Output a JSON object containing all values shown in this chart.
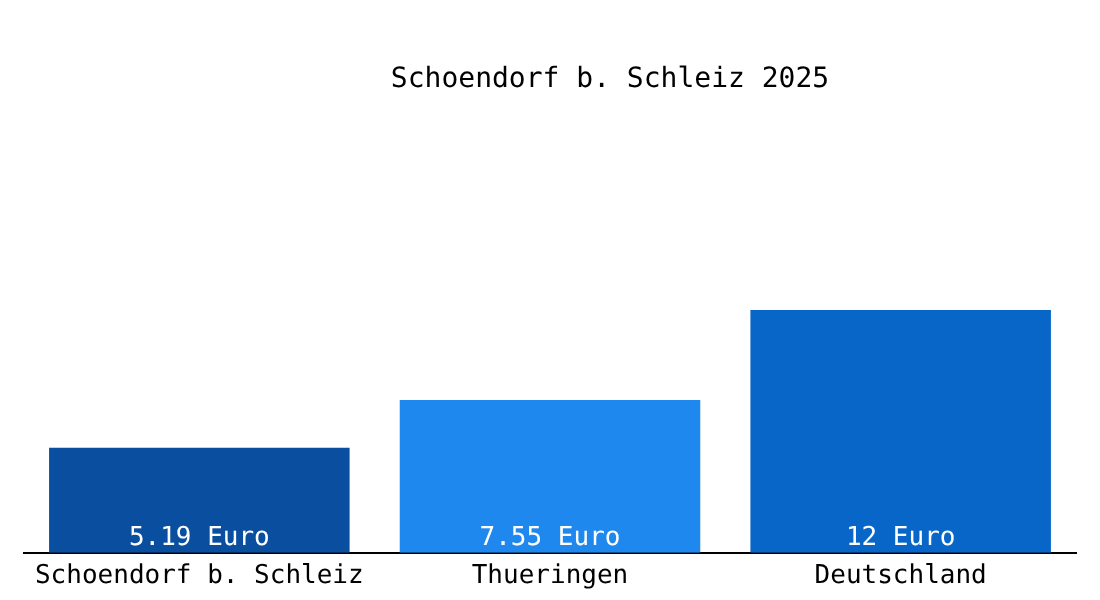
{
  "chart_data": {
    "type": "bar",
    "title": "Schoendorf b. Schleiz 2025",
    "categories": [
      "Schoendorf b. Schleiz",
      "Thueringen",
      "Deutschland"
    ],
    "values": [
      5.19,
      7.55,
      12
    ],
    "colors": [
      "#0a4f9f",
      "#1e88ee",
      "#0866c8"
    ],
    "value_labels": [
      "5.19 Euro",
      "7.55 Euro",
      "12 Euro"
    ],
    "grid": false,
    "legend": false
  }
}
